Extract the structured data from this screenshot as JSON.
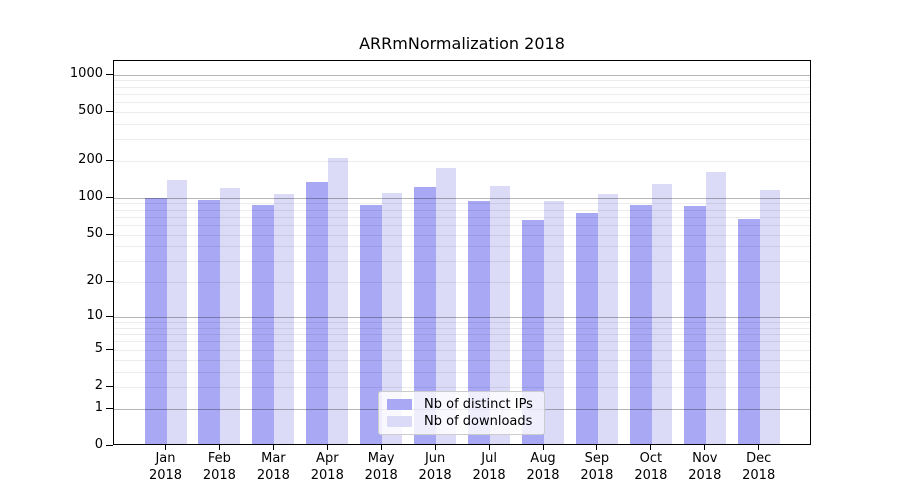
{
  "chart_data": {
    "type": "bar",
    "title": "ARRmNormalization 2018",
    "categories": [
      "Jan 2018",
      "Feb 2018",
      "Mar 2018",
      "Apr 2018",
      "May 2018",
      "Jun 2018",
      "Jul 2018",
      "Aug 2018",
      "Sep 2018",
      "Oct 2018",
      "Nov 2018",
      "Dec 2018"
    ],
    "x_tick_months": [
      "Jan",
      "Feb",
      "Mar",
      "Apr",
      "May",
      "Jun",
      "Jul",
      "Aug",
      "Sep",
      "Oct",
      "Nov",
      "Dec"
    ],
    "x_tick_year": "2018",
    "series": [
      {
        "name": "Nb of distinct IPs",
        "color": "#a8a8f5",
        "values": [
          97,
          93,
          84,
          129,
          85,
          118,
          91,
          63,
          72,
          85,
          83,
          65
        ]
      },
      {
        "name": "Nb of downloads",
        "color": "#dbdbf8",
        "values": [
          135,
          115,
          104,
          203,
          106,
          170,
          120,
          90,
          103,
          125,
          157,
          111
        ]
      }
    ],
    "y_axis": {
      "scale": "log10(1+y)",
      "tick_values": [
        0,
        1,
        2,
        5,
        10,
        20,
        50,
        100,
        200,
        500,
        1000
      ],
      "tick_labels": [
        "0",
        "1",
        "2",
        "5",
        "10",
        "20",
        "50",
        "100",
        "200",
        "500",
        "1000"
      ],
      "major_grid_values": [
        1,
        10,
        100,
        1000
      ],
      "minor_grid_decades": [
        1,
        10,
        100
      ],
      "ylim": [
        0,
        1270
      ]
    },
    "legend": {
      "position": "lower center",
      "entries": [
        "Nb of distinct IPs",
        "Nb of downloads"
      ]
    },
    "grid": true
  },
  "style": {
    "background": "#ffffff",
    "spine_color": "#000000",
    "bar_color_distinct_ips": "#a8a8f5",
    "bar_color_downloads": "#dbdbf8",
    "major_grid_color": "rgba(0,0,0,0.29)",
    "minor_grid_color": "rgba(0,0,0,0.075)"
  }
}
